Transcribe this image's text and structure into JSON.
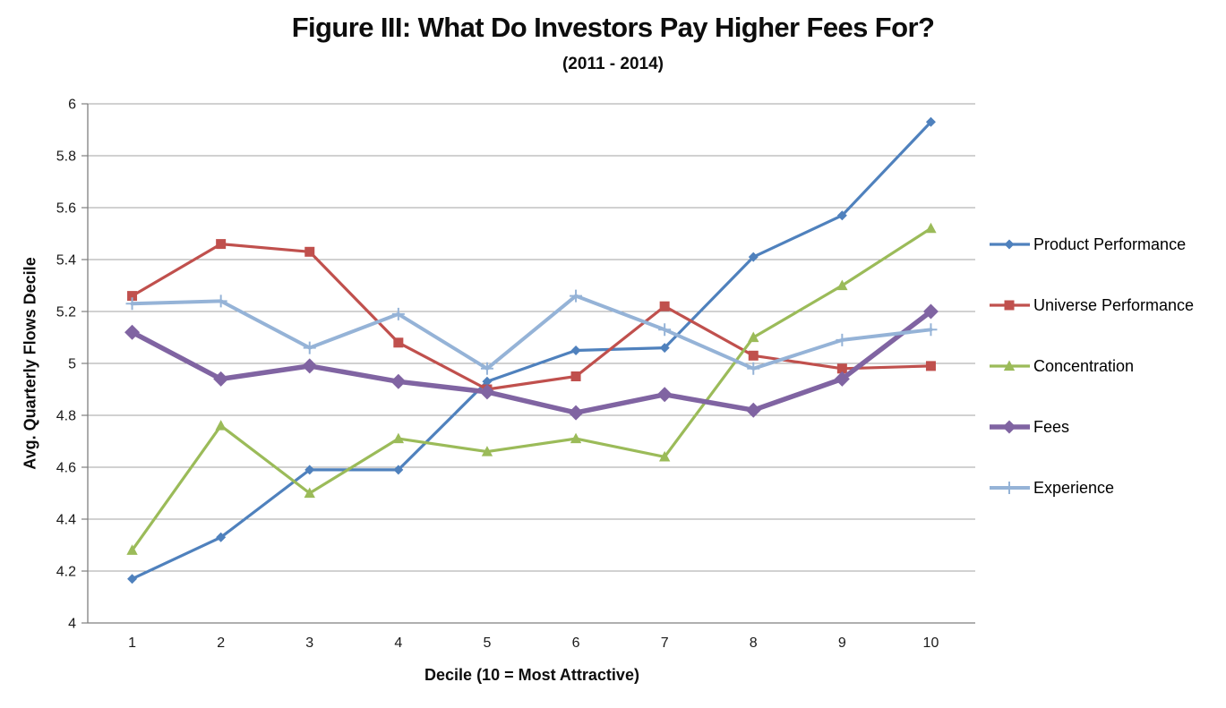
{
  "chart_data": {
    "type": "line",
    "title": "Figure III: What Do Investors Pay Higher Fees For?",
    "subtitle": "(2011 - 2014)",
    "xlabel": "Decile (10 = Most Attractive)",
    "ylabel": "Avg. Quarterly Flows Decile",
    "categories": [
      "1",
      "2",
      "3",
      "4",
      "5",
      "6",
      "7",
      "8",
      "9",
      "10"
    ],
    "ylim": [
      4,
      6
    ],
    "ytick_values": [
      4,
      4.2,
      4.4,
      4.6,
      4.8,
      5,
      5.2,
      5.4,
      5.6,
      5.8,
      6
    ],
    "ytick_labels": [
      "4",
      "4.2",
      "4.4",
      "4.6",
      "4.8",
      "5",
      "5.2",
      "5.4",
      "5.6",
      "5.8",
      "6"
    ],
    "grid": true,
    "legend_position": "right",
    "gridline_color": "#a3a3a3",
    "axis_color": "#7f7f7f",
    "series": [
      {
        "name": "Product Performance",
        "color": "#4F81BD",
        "marker": "diamond",
        "marker_size": 5.5,
        "line_width": 3.2,
        "values": [
          4.17,
          4.33,
          4.59,
          4.59,
          4.93,
          5.05,
          5.06,
          5.41,
          5.57,
          5.93
        ]
      },
      {
        "name": "Universe Performance",
        "color": "#C0504D",
        "marker": "square",
        "marker_size": 5.5,
        "line_width": 3.2,
        "values": [
          5.26,
          5.46,
          5.43,
          5.08,
          4.9,
          4.95,
          5.22,
          5.03,
          4.98,
          4.99
        ]
      },
      {
        "name": "Concentration",
        "color": "#9BBB59",
        "marker": "triangle",
        "marker_size": 6.5,
        "line_width": 3.2,
        "values": [
          4.28,
          4.76,
          4.5,
          4.71,
          4.66,
          4.71,
          4.64,
          5.1,
          5.3,
          5.52
        ]
      },
      {
        "name": "Fees",
        "color": "#8064A2",
        "marker": "diamond",
        "marker_size": 8.5,
        "line_width": 5.5,
        "values": [
          5.12,
          4.94,
          4.99,
          4.93,
          4.89,
          4.81,
          4.88,
          4.82,
          4.94,
          5.2
        ]
      },
      {
        "name": "Experience",
        "color": "#95B3D7",
        "marker": "plus",
        "marker_size": 7,
        "line_width": 4,
        "values": [
          5.23,
          5.24,
          5.06,
          5.19,
          4.98,
          5.26,
          5.13,
          4.98,
          5.09,
          5.13
        ]
      }
    ]
  }
}
